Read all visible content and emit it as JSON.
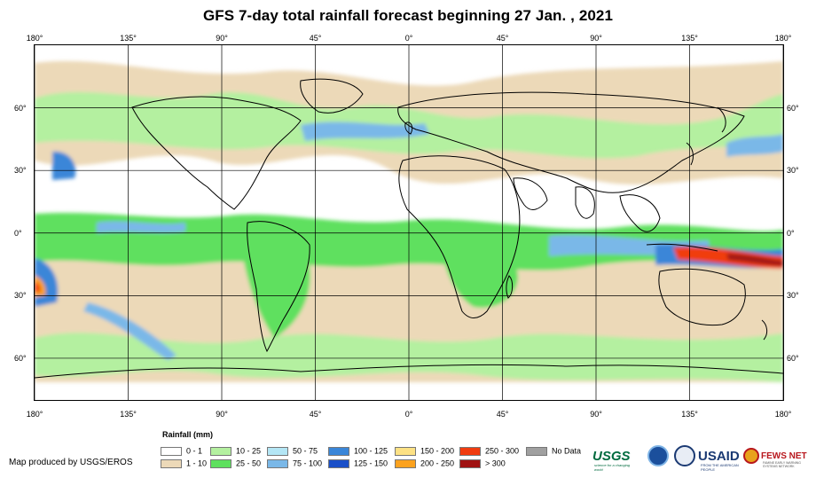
{
  "title": "GFS 7-day total rainfall forecast beginning 27 Jan. , 2021",
  "map": {
    "longitude_labels": [
      "180°",
      "135°",
      "90°",
      "45°",
      "0°",
      "45°",
      "90°",
      "135°",
      "180°"
    ],
    "latitude_labels": [
      "60°",
      "30°",
      "0°",
      "30°",
      "60°"
    ],
    "extent": {
      "lon_min": -180,
      "lon_max": 180,
      "lat_min": -80,
      "lat_max": 90
    }
  },
  "legend": {
    "title": "Rainfall (mm)",
    "items": [
      {
        "label": "0 - 1",
        "color": "#ffffff"
      },
      {
        "label": "1 - 10",
        "color": "#ecd9b8"
      },
      {
        "label": "10 - 25",
        "color": "#b4f0a0"
      },
      {
        "label": "25 - 50",
        "color": "#5ee05e"
      },
      {
        "label": "50 - 75",
        "color": "#b4e6f5"
      },
      {
        "label": "75 - 100",
        "color": "#7ab8e8"
      },
      {
        "label": "100 - 125",
        "color": "#3a86d8"
      },
      {
        "label": "125 - 150",
        "color": "#1a4fc8"
      },
      {
        "label": "150 - 200",
        "color": "#fde184"
      },
      {
        "label": "200 - 250",
        "color": "#fca21e"
      },
      {
        "label": "250 - 300",
        "color": "#f03c10"
      },
      {
        "label": "> 300",
        "color": "#a01212"
      },
      {
        "label": "No Data",
        "color": "#a0a0a0"
      }
    ]
  },
  "credit": "Map produced by USGS/EROS",
  "logos": {
    "usgs": "USGS",
    "usgs_tagline": "science for a changing world",
    "usaid": "USAID",
    "usaid_tagline": "FROM THE AMERICAN PEOPLE",
    "fews": "FEWS NET",
    "fews_tagline": "FAMINE EARLY WARNING SYSTEMS NETWORK"
  }
}
